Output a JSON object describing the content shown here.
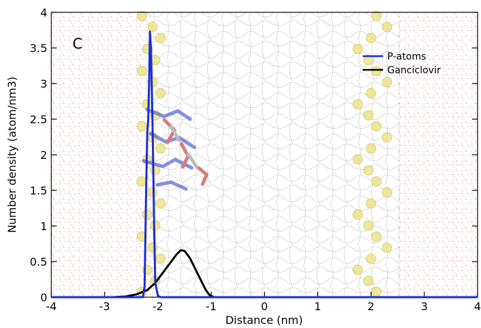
{
  "panel_label": "C",
  "chart_data": {
    "type": "line",
    "title": "",
    "xlabel": "Distance (nm)",
    "ylabel": "Number density (atom/nm3)",
    "xlim": [
      -4,
      4
    ],
    "ylim": [
      0,
      4
    ],
    "x_ticks": [
      -4,
      -3,
      -2,
      -1,
      0,
      1,
      2,
      3,
      4
    ],
    "y_ticks": [
      0,
      0.5,
      1,
      1.5,
      2,
      2.5,
      3,
      3.5,
      4
    ],
    "grid": false,
    "legend_position": "top-right",
    "background_image": "lipid-bilayer-md-snapshot",
    "series": [
      {
        "name": "P-atoms",
        "color": "#1b2ed6",
        "points": [
          [
            -4.0,
            0
          ],
          [
            -3.0,
            0
          ],
          [
            -2.4,
            0
          ],
          [
            -2.28,
            0.0
          ],
          [
            -2.25,
            0.15
          ],
          [
            -2.22,
            1.5
          ],
          [
            -2.2,
            2.3
          ],
          [
            -2.18,
            2.5
          ],
          [
            -2.16,
            3.2
          ],
          [
            -2.15,
            3.73
          ],
          [
            -2.13,
            3.5
          ],
          [
            -2.1,
            2.4
          ],
          [
            -2.07,
            1.0
          ],
          [
            -2.05,
            0.2
          ],
          [
            -2.0,
            0.02
          ],
          [
            -1.95,
            0
          ],
          [
            -1.0,
            0
          ],
          [
            0.0,
            0
          ],
          [
            1.0,
            0
          ],
          [
            2.2,
            0
          ],
          [
            3.0,
            0
          ],
          [
            4.0,
            0
          ]
        ]
      },
      {
        "name": "Ganciclovir",
        "color": "#000000",
        "points": [
          [
            -2.85,
            0
          ],
          [
            -2.6,
            0.01
          ],
          [
            -2.4,
            0.04
          ],
          [
            -2.2,
            0.1
          ],
          [
            -2.05,
            0.2
          ],
          [
            -1.9,
            0.35
          ],
          [
            -1.75,
            0.5
          ],
          [
            -1.65,
            0.6
          ],
          [
            -1.57,
            0.66
          ],
          [
            -1.5,
            0.65
          ],
          [
            -1.4,
            0.55
          ],
          [
            -1.3,
            0.4
          ],
          [
            -1.2,
            0.25
          ],
          [
            -1.1,
            0.1
          ],
          [
            -1.03,
            0.03
          ],
          [
            -0.95,
            0.0
          ],
          [
            -0.8,
            0
          ]
        ]
      }
    ]
  }
}
